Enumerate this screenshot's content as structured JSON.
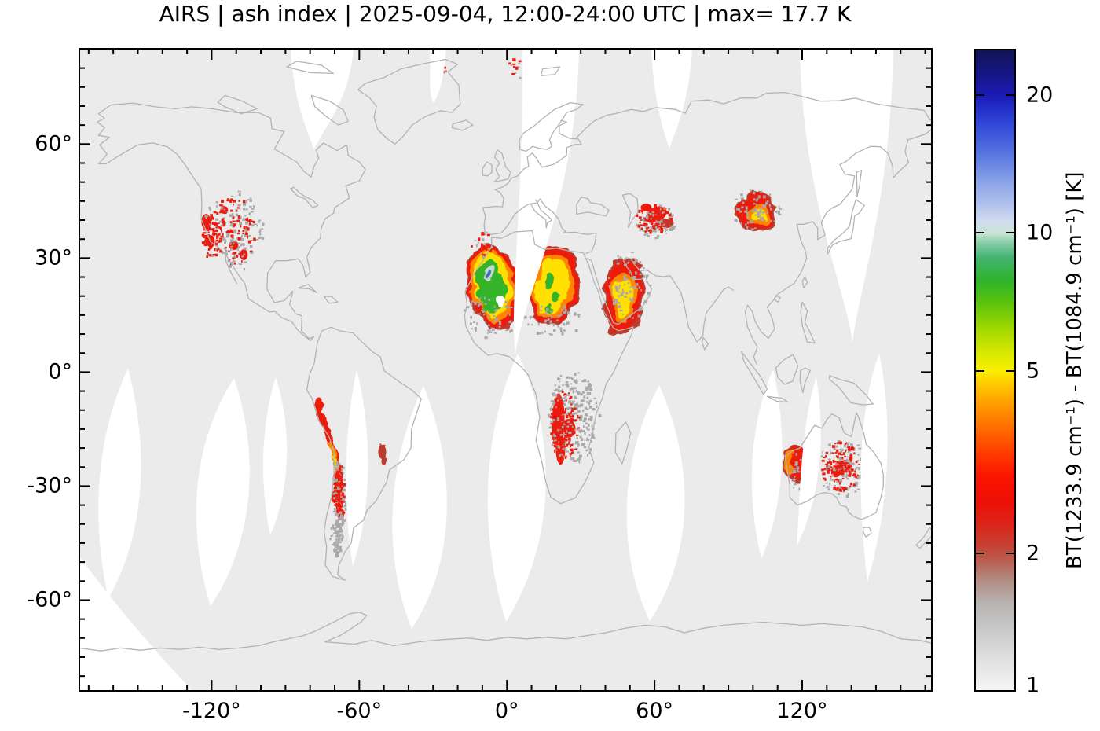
{
  "chart_data": {
    "type": "heatmap",
    "title": "AIRS | ash index | 2025-09-04, 12:00-24:00 UTC | max= 17.7 K",
    "title_parts": {
      "instrument": "AIRS",
      "product": "ash index",
      "period": "2025-09-04, 12:00-24:00 UTC",
      "max_text": "max= 17.7 K"
    },
    "max_value_K": 17.7,
    "projection": "equirectangular world map",
    "grid": false,
    "x_axis": {
      "tick_labels": [
        "-120°",
        "-60°",
        "0°",
        "60°",
        "120°"
      ],
      "tick_lons_deg": [
        -120,
        -60,
        0,
        60,
        120
      ],
      "minor_step_deg": 10,
      "range_deg": [
        -174,
        173
      ]
    },
    "y_axis": {
      "tick_labels": [
        "60°",
        "30°",
        "0°",
        "-30°",
        "-60°"
      ],
      "tick_lats_deg": [
        60,
        30,
        0,
        -30,
        -60
      ],
      "minor_step_deg": 5,
      "range_deg": [
        -84.2,
        85.3
      ]
    },
    "colorbar": {
      "label": "BT(1233.9 cm⁻¹) - BT(1084.9 cm⁻¹) [K]",
      "scale": "log",
      "domain": [
        1,
        25.2
      ],
      "tick_values": [
        20,
        10,
        5,
        2,
        1
      ],
      "tick_labels": [
        "20",
        "10",
        "5",
        "2",
        "1"
      ],
      "stops": [
        {
          "v": 1.0,
          "color": "#f5f5f5"
        },
        {
          "v": 1.15,
          "color": "#e2e2e2"
        },
        {
          "v": 1.35,
          "color": "#c9c9c9"
        },
        {
          "v": 1.55,
          "color": "#b7b3b1"
        },
        {
          "v": 1.75,
          "color": "#b28a80"
        },
        {
          "v": 1.9,
          "color": "#b96455"
        },
        {
          "v": 2.05,
          "color": "#c44437"
        },
        {
          "v": 2.3,
          "color": "#da251a"
        },
        {
          "v": 2.6,
          "color": "#ee0f06"
        },
        {
          "v": 2.95,
          "color": "#fb1500"
        },
        {
          "v": 3.3,
          "color": "#ff3c00"
        },
        {
          "v": 3.8,
          "color": "#ff7200"
        },
        {
          "v": 4.3,
          "color": "#ffa300"
        },
        {
          "v": 4.75,
          "color": "#ffd000"
        },
        {
          "v": 5.0,
          "color": "#f9ef00"
        },
        {
          "v": 5.5,
          "color": "#d6e800"
        },
        {
          "v": 6.2,
          "color": "#a0d800"
        },
        {
          "v": 7.0,
          "color": "#5ec40a"
        },
        {
          "v": 7.9,
          "color": "#2eb32c"
        },
        {
          "v": 8.9,
          "color": "#45b573"
        },
        {
          "v": 9.6,
          "color": "#8fcfae"
        },
        {
          "v": 10.0,
          "color": "#c9e4d2"
        },
        {
          "v": 10.6,
          "color": "#d3dcee"
        },
        {
          "v": 11.5,
          "color": "#b3c3ec"
        },
        {
          "v": 13.0,
          "color": "#8aa2e8"
        },
        {
          "v": 15.0,
          "color": "#5674e0"
        },
        {
          "v": 17.5,
          "color": "#2f45d8"
        },
        {
          "v": 20.0,
          "color": "#1b1bb8"
        },
        {
          "v": 22.5,
          "color": "#161682"
        },
        {
          "v": 25.2,
          "color": "#131356"
        }
      ]
    },
    "colors": {
      "coverage": "#ebebeb",
      "no_data": "#ffffff",
      "coastline": "#b3b3b3",
      "axis": "#000000",
      "ash_dark_red": "#bc3a2e",
      "ash_red": "#ec1b0e",
      "ash_orange": "#ff8500",
      "ash_yellow": "#ffe000",
      "ash_green": "#35b42c",
      "ash_pale": "#c2dcc8",
      "ash_pale_blue": "#a9bce8",
      "ash_blue": "#4b63d0",
      "speckle_gray": "#a9a9a9"
    },
    "regions": [
      {
        "name": "west-sahara-plume",
        "lon": -5.0,
        "lat": 22.4,
        "lon_span": 21,
        "lat_span": 23,
        "style": "plume-max",
        "peak_K_approx": 17.7
      },
      {
        "name": "central-sahara-plume",
        "lon": 18.9,
        "lat": 23.0,
        "lon_span": 21,
        "lat_span": 21,
        "style": "plume-hot",
        "peak_K_approx": 8
      },
      {
        "name": "arabian-plume",
        "lon": 47.7,
        "lat": 20.4,
        "lon_span": 17,
        "lat_span": 21,
        "style": "plume-warm",
        "peak_K_approx": 6
      },
      {
        "name": "caspian-central-asia-patch",
        "lon": 59.8,
        "lat": 40.4,
        "lon_span": 15,
        "lat_span": 9,
        "style": "speckle-dense",
        "peak_K_approx": 2.5
      },
      {
        "name": "gobi-east-asia-plume",
        "lon": 101.0,
        "lat": 42.1,
        "lon_span": 17,
        "lat_span": 10,
        "style": "plume-compact",
        "peak_K_approx": 5
      },
      {
        "name": "western-us-speckle",
        "lon": -111.4,
        "lat": 37.5,
        "lon_span": 20,
        "lat_span": 19,
        "style": "speckle-red",
        "peak_K_approx": 2.5
      },
      {
        "name": "svalbard-specks",
        "lon": 5.2,
        "lat": 80.4,
        "lon_span": 8,
        "lat_span": 4,
        "style": "specks",
        "peak_K_approx": 2.5
      },
      {
        "name": "ne-greenland-specks",
        "lon": -29.0,
        "lat": 80.2,
        "lon_span": 4,
        "lat_span": 3,
        "style": "specks",
        "peak_K_approx": 2.5
      },
      {
        "name": "morocco-specks",
        "lon": -10.5,
        "lat": 33.6,
        "lon_span": 6,
        "lat_span": 6,
        "style": "specks",
        "peak_K_approx": 2.5
      },
      {
        "name": "andes-plume-band",
        "lon": -70.0,
        "lat": -25.0,
        "lon_span": 4,
        "lat_span": 35,
        "style": "band",
        "peak_K_approx": 5
      },
      {
        "name": "paraguay-spot",
        "lon": -50.7,
        "lat": -21.0,
        "lon_span": 4,
        "lat_span": 6,
        "style": "spot-darkred",
        "peak_K_approx": 2
      },
      {
        "name": "southern-africa-speckle",
        "lon": 25.3,
        "lat": -13.8,
        "lon_span": 22,
        "lat_span": 28,
        "style": "core-speckle",
        "peak_K_approx": 3
      },
      {
        "name": "west-australia-patch",
        "lon": 117.3,
        "lat": -24.2,
        "lon_span": 9,
        "lat_span": 10,
        "style": "patch-red-core",
        "peak_K_approx": 4
      },
      {
        "name": "central-australia-speckle",
        "lon": 136.2,
        "lat": -24.6,
        "lon_span": 16,
        "lat_span": 13,
        "style": "speckle-red",
        "peak_K_approx": 2.5
      }
    ]
  }
}
